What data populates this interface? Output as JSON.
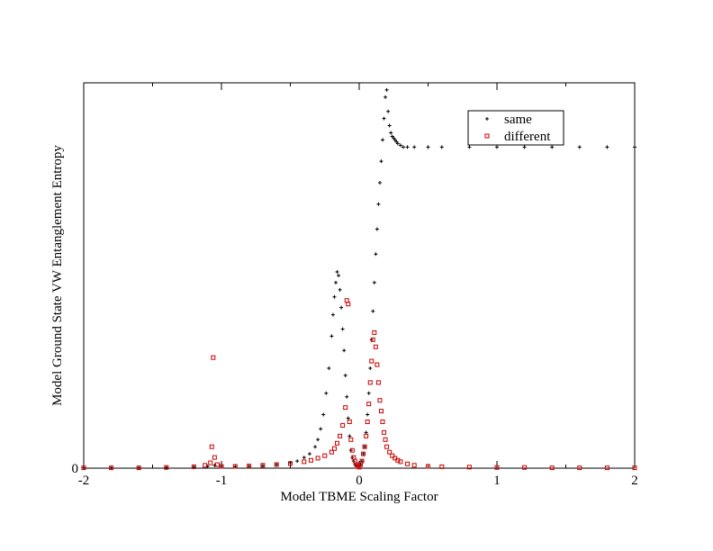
{
  "chart_data": {
    "type": "scatter",
    "xlabel": "Model TBME Scaling Factor",
    "ylabel": "Model Ground State VW Entanglement Entropy",
    "xlim": [
      -2,
      2
    ],
    "ylim": [
      0,
      1.08
    ],
    "x_ticks": [
      "-2",
      "-1",
      "0",
      "1",
      "2"
    ],
    "y_ticks": [
      "0"
    ],
    "grid": false,
    "legend": {
      "placement": "top-right"
    },
    "series": [
      {
        "name": "same",
        "color": "#000000",
        "marker": "plus",
        "x": [
          -2.0,
          -1.8,
          -1.6,
          -1.4,
          -1.2,
          -1.1,
          -1.05,
          -1.0,
          -0.9,
          -0.8,
          -0.7,
          -0.6,
          -0.5,
          -0.45,
          -0.4,
          -0.36,
          -0.32,
          -0.3,
          -0.28,
          -0.26,
          -0.24,
          -0.22,
          -0.2,
          -0.19,
          -0.18,
          -0.17,
          -0.16,
          -0.15,
          -0.14,
          -0.13,
          -0.12,
          -0.11,
          -0.1,
          -0.09,
          -0.08,
          -0.07,
          -0.06,
          -0.05,
          -0.04,
          -0.03,
          -0.02,
          -0.01,
          0.0,
          0.01,
          0.02,
          0.03,
          0.04,
          0.05,
          0.06,
          0.07,
          0.08,
          0.09,
          0.1,
          0.11,
          0.12,
          0.13,
          0.14,
          0.15,
          0.16,
          0.17,
          0.18,
          0.19,
          0.2,
          0.21,
          0.22,
          0.23,
          0.24,
          0.25,
          0.26,
          0.27,
          0.28,
          0.3,
          0.32,
          0.35,
          0.4,
          0.5,
          0.6,
          0.8,
          1.0,
          1.2,
          1.4,
          1.6,
          1.8,
          2.0
        ],
        "y": [
          0.001,
          0.001,
          0.001,
          0.002,
          0.003,
          0.005,
          0.008,
          0.005,
          0.004,
          0.005,
          0.007,
          0.01,
          0.015,
          0.02,
          0.03,
          0.04,
          0.06,
          0.08,
          0.11,
          0.15,
          0.21,
          0.28,
          0.37,
          0.43,
          0.48,
          0.52,
          0.55,
          0.54,
          0.5,
          0.45,
          0.39,
          0.33,
          0.26,
          0.2,
          0.14,
          0.09,
          0.05,
          0.03,
          0.02,
          0.01,
          0.01,
          0.005,
          0.005,
          0.01,
          0.02,
          0.04,
          0.06,
          0.1,
          0.15,
          0.21,
          0.28,
          0.36,
          0.44,
          0.52,
          0.6,
          0.67,
          0.74,
          0.8,
          0.86,
          0.92,
          0.98,
          1.04,
          1.06,
          1.0,
          0.96,
          0.94,
          0.93,
          0.925,
          0.92,
          0.915,
          0.91,
          0.905,
          0.9,
          0.9,
          0.9,
          0.9,
          0.9,
          0.9,
          0.9,
          0.9,
          0.9,
          0.9,
          0.9,
          0.9
        ]
      },
      {
        "name": "different",
        "color": "#cc0000",
        "marker": "square",
        "x": [
          -2.0,
          -1.8,
          -1.6,
          -1.4,
          -1.2,
          -1.12,
          -1.08,
          -1.07,
          -1.06,
          -1.05,
          -1.03,
          -1.0,
          -0.9,
          -0.8,
          -0.7,
          -0.6,
          -0.5,
          -0.4,
          -0.35,
          -0.3,
          -0.25,
          -0.2,
          -0.18,
          -0.16,
          -0.14,
          -0.12,
          -0.1,
          -0.09,
          -0.08,
          -0.07,
          -0.06,
          -0.05,
          -0.04,
          -0.03,
          -0.02,
          -0.01,
          0.0,
          0.01,
          0.02,
          0.03,
          0.04,
          0.05,
          0.06,
          0.07,
          0.08,
          0.09,
          0.1,
          0.11,
          0.12,
          0.13,
          0.14,
          0.15,
          0.16,
          0.17,
          0.18,
          0.19,
          0.2,
          0.22,
          0.24,
          0.26,
          0.28,
          0.3,
          0.35,
          0.4,
          0.5,
          0.6,
          0.8,
          1.0,
          1.2,
          1.4,
          1.6,
          1.8,
          2.0
        ],
        "y": [
          0.001,
          0.001,
          0.001,
          0.002,
          0.004,
          0.008,
          0.015,
          0.06,
          0.31,
          0.03,
          0.01,
          0.005,
          0.005,
          0.006,
          0.008,
          0.01,
          0.013,
          0.018,
          0.022,
          0.028,
          0.035,
          0.045,
          0.055,
          0.07,
          0.09,
          0.12,
          0.17,
          0.47,
          0.46,
          0.13,
          0.08,
          0.05,
          0.03,
          0.02,
          0.01,
          0.005,
          0.003,
          0.01,
          0.02,
          0.04,
          0.06,
          0.09,
          0.13,
          0.18,
          0.24,
          0.3,
          0.36,
          0.38,
          0.34,
          0.29,
          0.24,
          0.19,
          0.16,
          0.13,
          0.1,
          0.08,
          0.06,
          0.045,
          0.035,
          0.028,
          0.022,
          0.018,
          0.012,
          0.008,
          0.005,
          0.004,
          0.003,
          0.002,
          0.002,
          0.001,
          0.001,
          0.001,
          0.001
        ]
      }
    ]
  }
}
